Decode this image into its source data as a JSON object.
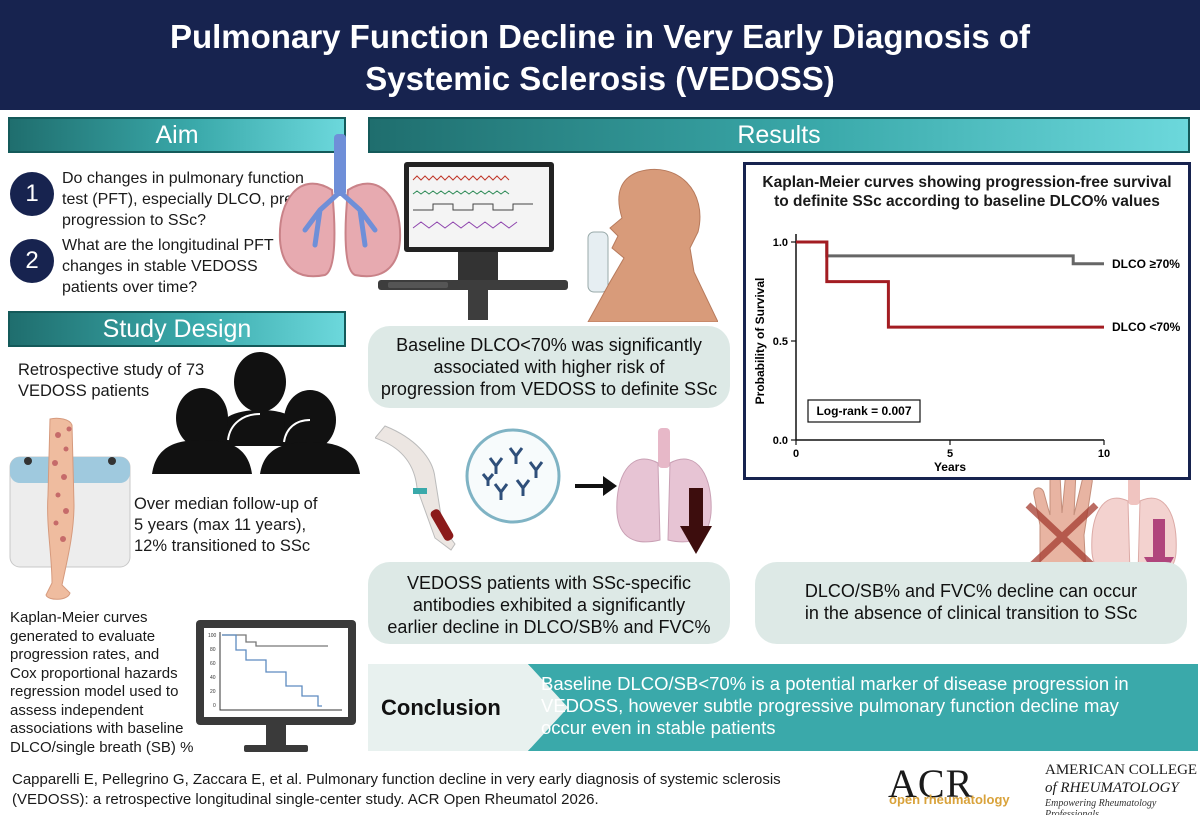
{
  "header": {
    "title_line1": "Pulmonary Function Decline in Very Early Diagnosis of",
    "title_line2": "Systemic Sclerosis (VEDOSS)"
  },
  "aim": {
    "heading": "Aim",
    "items": [
      {
        "number": "1",
        "lines": [
          "Do changes in pulmonary function",
          "test (PFT), especially DLCO, predict",
          "progression to SSc?"
        ]
      },
      {
        "number": "2",
        "lines": [
          "What are the longitudinal PFT",
          "changes in stable VEDOSS",
          "patients over time?"
        ]
      }
    ]
  },
  "study_design": {
    "heading": "Study Design",
    "retro_lines": [
      "Retrospective study of 73",
      "VEDOSS patients"
    ],
    "followup_lines": [
      "Over median follow-up of",
      "5 years (max 11 years),",
      "12% transitioned to SSc"
    ],
    "methods_lines": [
      "Kaplan-Meier curves",
      "generated to evaluate",
      "progression rates, and",
      "Cox proportional hazards",
      "regression model used to",
      "assess independent",
      "associations with baseline",
      "DLCO/single breath (SB) %"
    ],
    "mini_chart_ticks": [
      "100",
      "80",
      "60",
      "40",
      "20",
      "0"
    ]
  },
  "results": {
    "heading": "Results",
    "finding1_lines": [
      "Baseline DLCO<70% was significantly",
      "associated with higher risk of",
      "progression from VEDOSS to definite SSc"
    ],
    "finding2_lines": [
      "VEDOSS patients with SSc-specific",
      "antibodies exhibited a significantly",
      "earlier decline in DLCO/SB% and FVC%"
    ],
    "finding3_lines": [
      "DLCO/SB% and FVC% decline can occur",
      "in the absence of clinical transition to SSc"
    ]
  },
  "km_chart": {
    "title_lines": [
      "Kaplan-Meier curves showing progression-free survival",
      "to definite SSc according to baseline DLCO% values"
    ],
    "logrank": "Log-rank = 0.007"
  },
  "chart_data": {
    "type": "line",
    "title": "Kaplan-Meier curves showing progression-free survival to definite SSc according to baseline DLCO% values",
    "xlabel": "Years",
    "ylabel": "Probability of Survival",
    "xlim": [
      0,
      10
    ],
    "ylim": [
      0,
      1.0
    ],
    "xticks": [
      "0",
      "5",
      "10"
    ],
    "yticks": [
      "0.0",
      "0.5",
      "1.0"
    ],
    "step": true,
    "series": [
      {
        "name": "DLCO ≥70%",
        "color": "#666666",
        "x": [
          0,
          1,
          8,
          9,
          10
        ],
        "y": [
          1.0,
          0.93,
          0.93,
          0.89,
          0.89
        ]
      },
      {
        "name": "DLCO <70%",
        "color": "#a31c22",
        "x": [
          0,
          1,
          2,
          3,
          10
        ],
        "y": [
          1.0,
          0.8,
          0.8,
          0.57,
          0.57
        ]
      }
    ],
    "annotation": "Log-rank = 0.007"
  },
  "conclusion": {
    "label": "Conclusion",
    "text_lines": [
      "Baseline DLCO/SB<70% is a potential marker of disease progression in",
      "VEDOSS, however subtle progressive pulmonary function decline may",
      "occur even in stable patients"
    ]
  },
  "citation": {
    "line1": "Capparelli E, Pellegrino G, Zaccara E, et al. Pulmonary function decline in very early diagnosis of systemic sclerosis",
    "line2": "(VEDOSS): a retrospective longitudinal single-center study. ACR Open Rheumatol 2026."
  },
  "logos": {
    "acr": "ACR",
    "acr_sub": "open rheumatology",
    "college_line1": "AMERICAN COLLEGE",
    "college_line2": "of RHEUMATOLOGY",
    "college_tagline": "Empowering Rheumatology Professionals"
  },
  "colors": {
    "navy": "#17234f",
    "teal": "#3aa9aa",
    "bubble": "#dde9e6",
    "dlco_high": "#666666",
    "dlco_low": "#a31c22"
  }
}
